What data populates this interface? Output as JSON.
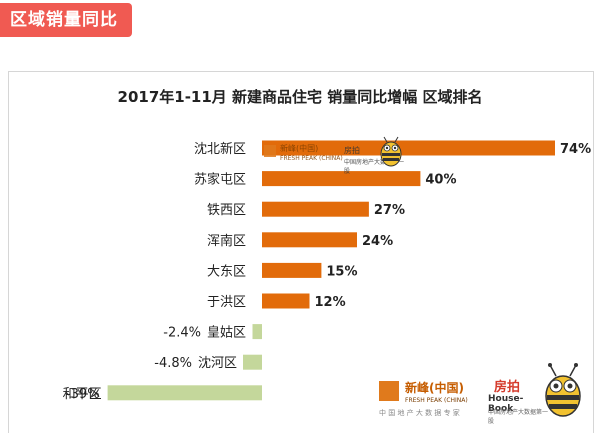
{
  "section_tag": "区域销量同比",
  "chart_data": {
    "type": "bar",
    "orientation": "horizontal",
    "title": "2017年1-11月 新建商品住宅 销量同比增幅 区域排名",
    "categories": [
      "沈北新区",
      "苏家屯区",
      "铁西区",
      "浑南区",
      "大东区",
      "于洪区",
      "皇姑区",
      "沈河区",
      "和平区"
    ],
    "values": [
      74,
      40,
      27,
      24,
      15,
      12,
      -2.4,
      -4.8,
      -39
    ],
    "value_labels": [
      "74%",
      "40%",
      "27%",
      "24%",
      "15%",
      "12%",
      "-2.4%",
      "-4.8%",
      "-39%"
    ],
    "xlabel": "",
    "ylabel": "",
    "grid": false,
    "legend": "none",
    "colors": {
      "positive": "#e26b0a",
      "negative": "#c4d79b"
    }
  },
  "watermarks": {
    "top_brand": "新峰(中国)",
    "top_brand_sub": "FRESH PEAK (CHINA)",
    "top_partner": "房拍",
    "top_partner_sub": "中国房地产大数据第一股",
    "bottom_brand": "新峰(中国)",
    "bottom_brand_sub": "FRESH PEAK (CHINA)",
    "bottom_brand_tag": "中 国 地 产 大 数 据 专 家",
    "house_book_cn": "房拍",
    "house_book_en": "House-Book",
    "house_book_sub": "中国房地产大数据第一股"
  }
}
